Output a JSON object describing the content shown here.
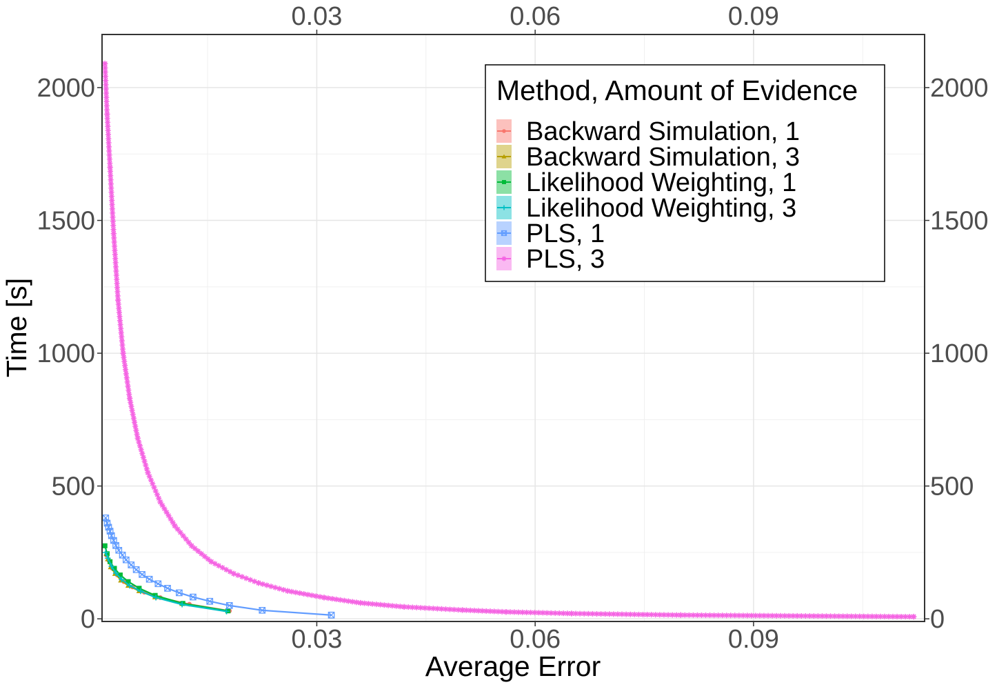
{
  "chart_data": {
    "type": "line",
    "xlabel": "Average Error",
    "ylabel": "Time [s]",
    "xlim": [
      0.0005,
      0.1135
    ],
    "ylim": [
      -10,
      2200
    ],
    "x_ticks": [
      0.03,
      0.06,
      0.09
    ],
    "x_tick_labels": [
      "0.03",
      "0.06",
      "0.09"
    ],
    "y_ticks": [
      0,
      500,
      1000,
      1500,
      2000
    ],
    "y_tick_labels": [
      "0",
      "500",
      "1000",
      "1500",
      "2000"
    ],
    "grid": true,
    "secondary_axes": true,
    "legend_placement": "top-right",
    "legend_title": "Method, Amount of Evidence",
    "series": [
      {
        "name": "Backward Simulation, 1",
        "color": "#F8766D",
        "marker": "circle",
        "x": [
          0.0011,
          0.0014,
          0.0019,
          0.0026,
          0.0035,
          0.0047,
          0.0063,
          0.0085,
          0.0125,
          0.018
        ],
        "y": [
          240,
          220,
          190,
          165,
          140,
          120,
          100,
          80,
          55,
          30
        ]
      },
      {
        "name": "Backward Simulation, 3",
        "color": "#B79F00",
        "marker": "triangle",
        "x": [
          0.0011,
          0.0013,
          0.0017,
          0.0023,
          0.0031,
          0.0041,
          0.0056,
          0.0078,
          0.0115,
          0.0178
        ],
        "y": [
          245,
          225,
          195,
          170,
          145,
          125,
          105,
          82,
          57,
          30
        ]
      },
      {
        "name": "Likelihood Weighting, 1",
        "color": "#00BA38",
        "marker": "square",
        "x": [
          0.0009,
          0.0012,
          0.0016,
          0.0022,
          0.003,
          0.0041,
          0.0056,
          0.0078,
          0.0116,
          0.0178
        ],
        "y": [
          275,
          245,
          215,
          190,
          165,
          140,
          115,
          88,
          58,
          30
        ]
      },
      {
        "name": "Likelihood Weighting, 3",
        "color": "#00BFC4",
        "marker": "plus",
        "x": [
          0.001,
          0.0013,
          0.0018,
          0.0024,
          0.0032,
          0.0043,
          0.0058,
          0.0079,
          0.0115,
          0.0176
        ],
        "y": [
          250,
          228,
          198,
          172,
          148,
          125,
          104,
          80,
          54,
          28
        ]
      },
      {
        "name": "PLS, 1",
        "color": "#619CFF",
        "marker": "square-cross",
        "x": [
          0.001,
          0.0012,
          0.0014,
          0.0016,
          0.0018,
          0.0021,
          0.0024,
          0.0028,
          0.0033,
          0.0038,
          0.0045,
          0.0052,
          0.006,
          0.007,
          0.0082,
          0.0095,
          0.0111,
          0.013,
          0.0153,
          0.018,
          0.0225,
          0.032
        ],
        "y": [
          380,
          360,
          345,
          330,
          313,
          295,
          276,
          258,
          240,
          222,
          203,
          185,
          167,
          149,
          132,
          115,
          98,
          82,
          66,
          50,
          32,
          14
        ]
      },
      {
        "name": "PLS, 3",
        "color": "#F564E3",
        "marker": "asterisk",
        "x": [
          0.0009,
          0.0012,
          0.0016,
          0.0021,
          0.0027,
          0.0034,
          0.0043,
          0.0054,
          0.0068,
          0.0085,
          0.0105,
          0.0128,
          0.0155,
          0.0186,
          0.022,
          0.026,
          0.031,
          0.036,
          0.042,
          0.05,
          0.056,
          0.065,
          0.08,
          0.112
        ],
        "y": [
          2090,
          1900,
          1700,
          1450,
          1200,
          1000,
          830,
          680,
          550,
          440,
          350,
          275,
          215,
          170,
          135,
          105,
          80,
          60,
          45,
          33,
          26,
          20,
          14,
          8
        ]
      }
    ]
  }
}
